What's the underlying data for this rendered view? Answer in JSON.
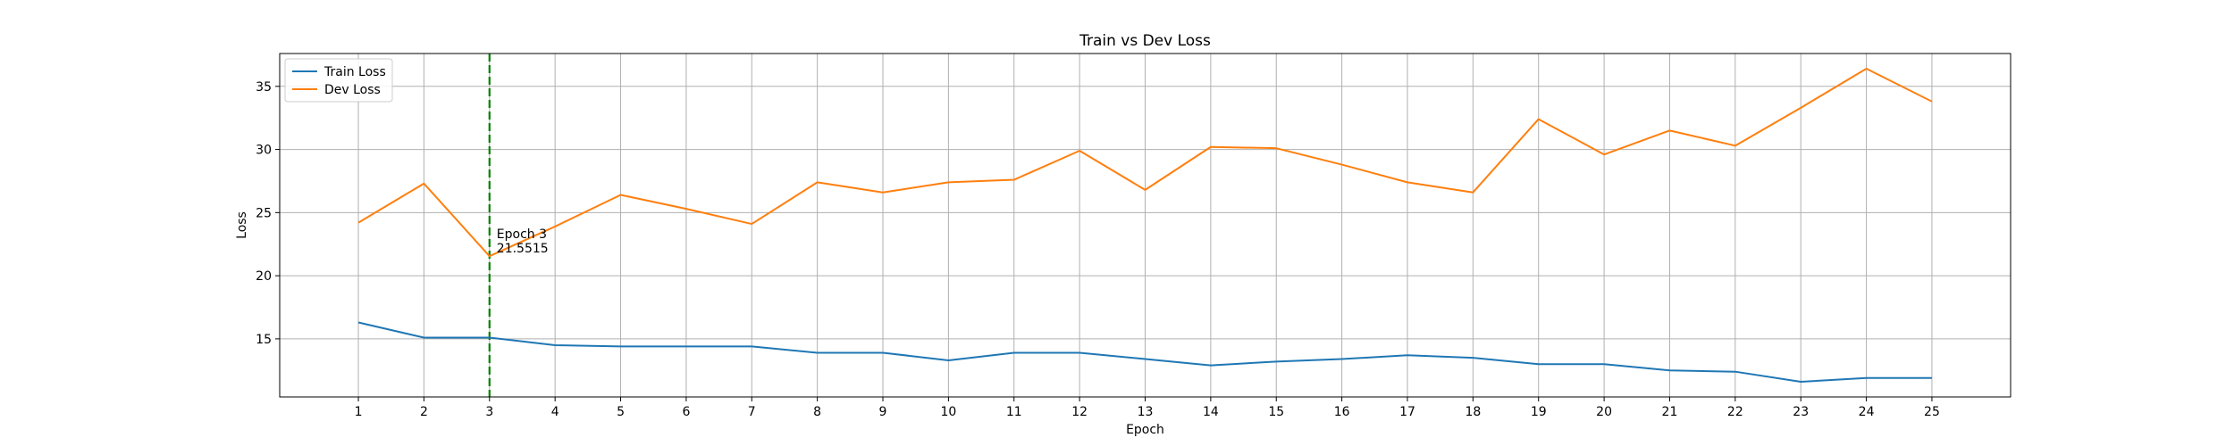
{
  "chart_data": {
    "type": "line",
    "title": "Train vs Dev Loss",
    "xlabel": "Epoch",
    "ylabel": "Loss",
    "x": [
      1,
      2,
      3,
      4,
      5,
      6,
      7,
      8,
      9,
      10,
      11,
      12,
      13,
      14,
      15,
      16,
      17,
      18,
      19,
      20,
      21,
      22,
      23,
      24,
      25
    ],
    "xlim": [
      -0.2,
      26.2
    ],
    "ylim": [
      10.4,
      37.6
    ],
    "yticks": [
      15,
      20,
      25,
      30,
      35
    ],
    "grid": true,
    "legend_position": "top-left",
    "series": [
      {
        "name": "Train Loss",
        "color": "#1f77b4",
        "values": [
          16.3,
          15.1,
          15.1,
          14.5,
          14.4,
          14.4,
          14.4,
          13.9,
          13.9,
          13.3,
          13.9,
          13.9,
          13.4,
          12.9,
          13.2,
          13.4,
          13.7,
          13.5,
          13.0,
          13.0,
          12.5,
          12.4,
          11.6,
          11.9,
          11.9
        ]
      },
      {
        "name": "Dev Loss",
        "color": "#ff7f0e",
        "values": [
          24.2,
          27.3,
          21.5515,
          23.9,
          26.4,
          25.3,
          24.1,
          27.4,
          26.6,
          27.4,
          27.6,
          29.9,
          26.8,
          30.2,
          30.1,
          28.8,
          27.4,
          26.6,
          32.4,
          29.6,
          31.5,
          30.3,
          33.3,
          36.4,
          33.8
        ]
      }
    ],
    "marker_line": {
      "x": 3,
      "color": "#008000",
      "style": "dashed"
    },
    "annotation": {
      "x": 3,
      "y": 21.5515,
      "lines": [
        "Epoch 3",
        "21.5515"
      ]
    }
  }
}
